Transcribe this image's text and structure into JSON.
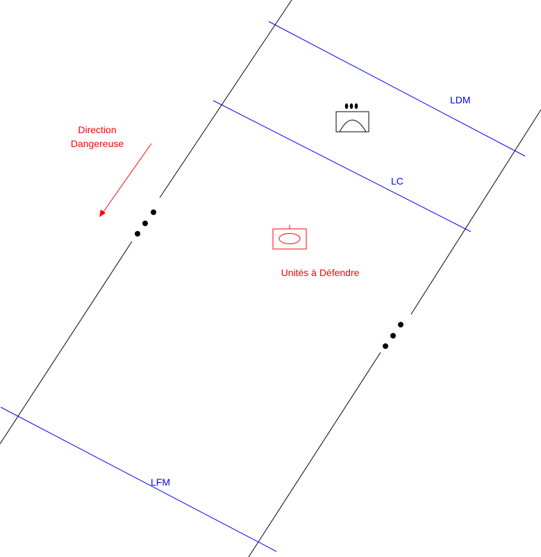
{
  "labels": {
    "ldm": "LDM",
    "lc": "LC",
    "lfm": "LFM",
    "direction_line1": "Direction",
    "direction_line2": "Dangereuse",
    "units": "Unités à Défendre"
  },
  "icons": {
    "black_symbol": "enemy-dome-unit-icon",
    "red_symbol": "friendly-unit-icon",
    "continuation": "ellipsis-dots-icon",
    "direction": "arrow-icon"
  },
  "colors": {
    "boundary": "#000000",
    "phase_line": "#0000ff",
    "friendly": "#ff0000"
  }
}
